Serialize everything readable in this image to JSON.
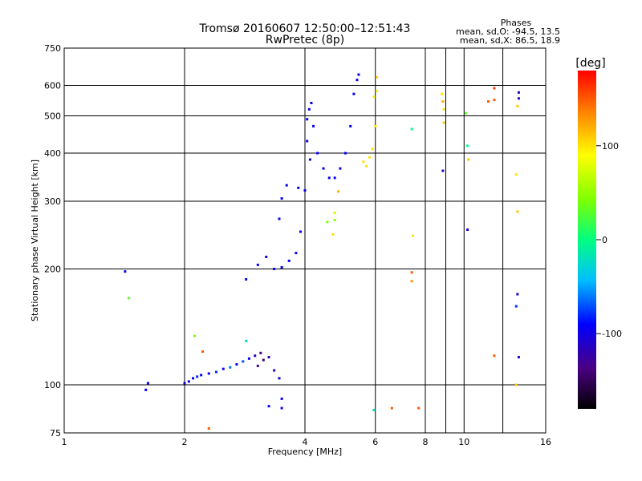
{
  "title": "Tromsø 20160607 12:50:00–12:51:43",
  "subtitle": "RwPretec (8p)",
  "phases_box": {
    "heading": "Phases",
    "line_o": "mean, sd,O: -94.5, 13.5",
    "line_x": "mean, sd,X:  86.5, 18.9"
  },
  "colorbar": {
    "label": "[deg]",
    "range": [
      -180,
      180
    ],
    "ticks": [
      {
        "value": 100,
        "label": "100"
      },
      {
        "value": 0,
        "label": "0"
      },
      {
        "value": -100,
        "label": "-100"
      }
    ]
  },
  "chart_data": {
    "type": "scatter",
    "xlabel": "Frequency [MHz]",
    "ylabel": "Stationary phase Virtual Height [km]",
    "xscale": "log",
    "yscale": "log",
    "xlim": [
      1,
      16
    ],
    "ylim": [
      75,
      750
    ],
    "grid": true,
    "x_ticks": [
      {
        "value": 1,
        "label": "1"
      },
      {
        "value": 2,
        "label": "2"
      },
      {
        "value": 4,
        "label": "4"
      },
      {
        "value": 6,
        "label": "6"
      },
      {
        "value": 8,
        "label": "8"
      },
      {
        "value": 10,
        "label": "10"
      },
      {
        "value": 16,
        "label": "16"
      }
    ],
    "y_ticks": [
      {
        "value": 75,
        "label": "75"
      },
      {
        "value": 100,
        "label": "100"
      },
      {
        "value": 200,
        "label": "200"
      },
      {
        "value": 300,
        "label": "300"
      },
      {
        "value": 400,
        "label": "400"
      },
      {
        "value": 500,
        "label": "500"
      },
      {
        "value": 600,
        "label": "600"
      },
      {
        "value": 750,
        "label": "750"
      }
    ],
    "x_minor_gridlines": [
      9,
      12.5
    ],
    "series": [
      {
        "points": [
          [
            1.42,
            197,
            -95
          ],
          [
            1.45,
            168,
            30
          ],
          [
            1.6,
            97,
            -95
          ],
          [
            1.62,
            101,
            -95
          ],
          [
            2.0,
            101,
            -95
          ],
          [
            2.05,
            102,
            -95
          ],
          [
            2.1,
            104,
            -95
          ],
          [
            2.15,
            105,
            -80
          ],
          [
            2.2,
            106,
            -95
          ],
          [
            2.3,
            107,
            -95
          ],
          [
            2.4,
            108,
            -80
          ],
          [
            2.5,
            110,
            -95
          ],
          [
            2.6,
            111,
            -60
          ],
          [
            2.7,
            113,
            -95
          ],
          [
            2.8,
            115,
            -70
          ],
          [
            2.9,
            117,
            -95
          ],
          [
            3.0,
            119,
            -110
          ],
          [
            3.05,
            112,
            -130
          ],
          [
            3.1,
            121,
            -140
          ],
          [
            3.15,
            116,
            -150
          ],
          [
            3.25,
            118,
            -120
          ],
          [
            3.35,
            109,
            -110
          ],
          [
            3.45,
            104,
            -100
          ],
          [
            2.12,
            134,
            40
          ],
          [
            2.22,
            122,
            150
          ],
          [
            2.3,
            77,
            150
          ],
          [
            2.85,
            130,
            -20
          ],
          [
            3.25,
            88,
            -100
          ],
          [
            3.5,
            92,
            -100
          ],
          [
            3.5,
            87,
            -95
          ],
          [
            2.85,
            188,
            -95
          ],
          [
            3.05,
            205,
            -95
          ],
          [
            3.2,
            215,
            -95
          ],
          [
            3.35,
            200,
            -95
          ],
          [
            3.5,
            202,
            -95
          ],
          [
            3.65,
            210,
            -95
          ],
          [
            3.8,
            220,
            -95
          ],
          [
            3.9,
            250,
            -95
          ],
          [
            4.0,
            320,
            -95
          ],
          [
            4.05,
            430,
            -95
          ],
          [
            4.1,
            520,
            -95
          ],
          [
            4.15,
            540,
            -95
          ],
          [
            4.2,
            470,
            -95
          ],
          [
            4.3,
            400,
            -95
          ],
          [
            4.45,
            365,
            -95
          ],
          [
            4.6,
            345,
            -95
          ],
          [
            4.75,
            345,
            -95
          ],
          [
            4.9,
            365,
            -95
          ],
          [
            5.05,
            400,
            -95
          ],
          [
            5.2,
            470,
            -95
          ],
          [
            5.3,
            570,
            -95
          ],
          [
            5.4,
            620,
            -95
          ],
          [
            5.45,
            640,
            -95
          ],
          [
            3.6,
            330,
            -95
          ],
          [
            3.85,
            325,
            -95
          ],
          [
            3.5,
            305,
            -95
          ],
          [
            3.45,
            270,
            -95
          ],
          [
            4.05,
            490,
            -95
          ],
          [
            4.12,
            385,
            -95
          ],
          [
            4.55,
            265,
            40
          ],
          [
            4.75,
            268,
            50
          ],
          [
            4.75,
            280,
            70
          ],
          [
            4.7,
            246,
            100
          ],
          [
            5.6,
            380,
            100
          ],
          [
            5.7,
            370,
            100
          ],
          [
            5.8,
            390,
            100
          ],
          [
            5.9,
            410,
            100
          ],
          [
            6.0,
            470,
            100
          ],
          [
            6.05,
            580,
            100
          ],
          [
            6.05,
            630,
            110
          ],
          [
            5.95,
            560,
            95
          ],
          [
            4.85,
            318,
            120
          ],
          [
            5.95,
            86,
            -20
          ],
          [
            6.6,
            87,
            150
          ],
          [
            7.4,
            462,
            0
          ],
          [
            7.4,
            196,
            150
          ],
          [
            7.4,
            186,
            130
          ],
          [
            7.45,
            244,
            100
          ],
          [
            7.7,
            87,
            150
          ],
          [
            8.8,
            570,
            100
          ],
          [
            8.85,
            545,
            120
          ],
          [
            8.9,
            520,
            100
          ],
          [
            8.9,
            480,
            110
          ],
          [
            8.85,
            360,
            -110
          ],
          [
            10.1,
            508,
            30
          ],
          [
            10.2,
            418,
            0
          ],
          [
            10.25,
            385,
            110
          ],
          [
            10.2,
            253,
            -110
          ],
          [
            11.5,
            545,
            150
          ],
          [
            11.9,
            590,
            160
          ],
          [
            11.9,
            550,
            150
          ],
          [
            11.9,
            119,
            150
          ],
          [
            13.7,
            555,
            -110
          ],
          [
            13.7,
            575,
            -110
          ],
          [
            13.6,
            530,
            110
          ],
          [
            13.5,
            352,
            100
          ],
          [
            13.6,
            282,
            110
          ],
          [
            13.6,
            172,
            -110
          ],
          [
            13.5,
            160,
            -80
          ],
          [
            13.7,
            118,
            -110
          ],
          [
            13.5,
            100,
            110
          ]
        ]
      }
    ]
  }
}
